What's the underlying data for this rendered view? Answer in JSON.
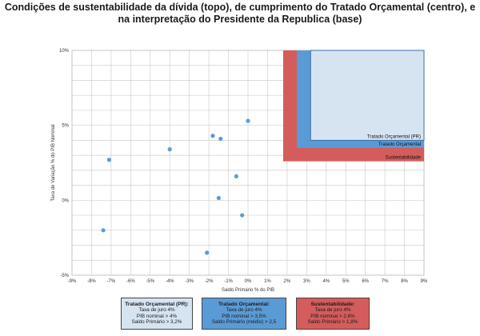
{
  "title_line1": "Condições de sustentabilidade da dívida (topo), de cumprimento do Tratado Orçamental (centro), e",
  "title_line2": "na interpretação do Presidente da Republica (base)",
  "colors": {
    "sustentabilidade": "#d45c5c",
    "tratado": "#5b9bd5",
    "tratado_pr": "#d6e4f2",
    "border": "#3a6ea8",
    "points": "#5b9bd5",
    "grid": "#d0d0d0"
  },
  "chart_data": {
    "type": "scatter",
    "xlabel": "Saldo Primário % do PIB",
    "ylabel": "Taxa de Variação % do PIB Nominal",
    "xlim": [
      -9,
      9
    ],
    "ylim": [
      -5,
      10
    ],
    "x_ticks": [
      "-9%",
      "-8%",
      "-7%",
      "-6%",
      "-5%",
      "-4%",
      "-3%",
      "-2%",
      "-1%",
      "0%",
      "1%",
      "2%",
      "3%",
      "4%",
      "5%",
      "6%",
      "7%",
      "8%",
      "9%"
    ],
    "y_ticks": [
      "-5%",
      "0%",
      "5%",
      "10%"
    ],
    "grid": true,
    "points": [
      {
        "x": 0.0,
        "y": 5.3
      },
      {
        "x": -1.8,
        "y": 4.3
      },
      {
        "x": -1.4,
        "y": 4.1
      },
      {
        "x": -4.0,
        "y": 3.4
      },
      {
        "x": -7.1,
        "y": 2.7
      },
      {
        "x": -0.6,
        "y": 1.6
      },
      {
        "x": -1.5,
        "y": 0.15
      },
      {
        "x": -0.3,
        "y": -1.0
      },
      {
        "x": -7.4,
        "y": -2.0
      },
      {
        "x": -2.1,
        "y": -3.5
      }
    ],
    "regions": [
      {
        "name": "Sustentabilidade",
        "x_min": 1.8,
        "y_min": 2.6
      },
      {
        "name": "Tratado Orçamental",
        "x_min": 2.5,
        "y_min": 3.5
      },
      {
        "name": "Tratado Orçamental (PR)",
        "x_min": 3.2,
        "y_min": 4.0
      }
    ]
  },
  "legend_boxes": [
    {
      "title": "Tratado Orçamental (PR):",
      "lines": [
        "Taxa de juro 4%",
        "PIB nominal > 4%",
        "Saldo Primário > 3,2%"
      ]
    },
    {
      "title": "Tratado Orçamental:",
      "lines": [
        "Taxa de juro 4%",
        "PIB nominal > 3,5%",
        "Saldo Primário (médio) > 2,5"
      ]
    },
    {
      "title": "Sustentabilidade:",
      "lines": [
        "Taxa de juro 4%",
        "PIB nominal > 2,6%",
        "Saldo Primário > 1,8%"
      ]
    }
  ]
}
